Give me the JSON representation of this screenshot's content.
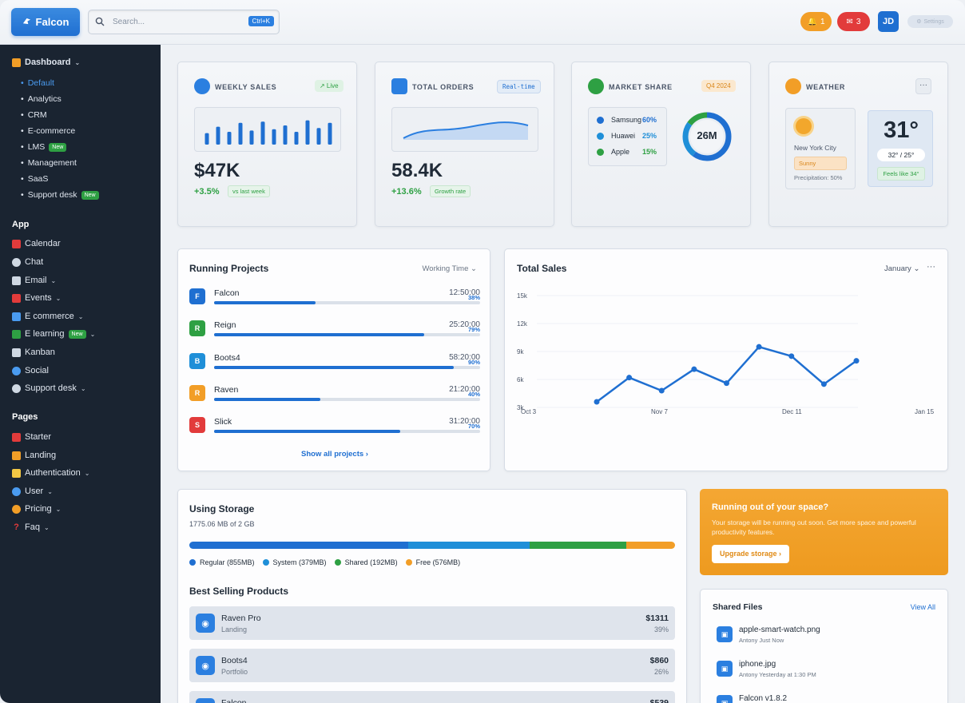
{
  "brand": {
    "name": "Falcon"
  },
  "search": {
    "placeholder": "Search...",
    "shortcut": "Ctrl+K"
  },
  "top_actions": {
    "alerts_count": "1",
    "messages_count": "3",
    "avatar_initials": "JD",
    "settings_label": "Settings"
  },
  "sidebar": {
    "dashboard_label": "Dashboard",
    "dashboard_items": [
      {
        "label": "Default",
        "badge": ""
      },
      {
        "label": "Analytics",
        "badge": ""
      },
      {
        "label": "CRM",
        "badge": ""
      },
      {
        "label": "E-commerce",
        "badge": ""
      },
      {
        "label": "LMS",
        "badge": "New"
      },
      {
        "label": "Management",
        "badge": ""
      },
      {
        "label": "SaaS",
        "badge": ""
      },
      {
        "label": "Support desk",
        "badge": "New"
      }
    ],
    "app_heading": "App",
    "app_items": [
      {
        "label": "Calendar",
        "badge": ""
      },
      {
        "label": "Chat",
        "badge": ""
      },
      {
        "label": "Email",
        "badge": ""
      },
      {
        "label": "Events",
        "badge": ""
      },
      {
        "label": "E commerce",
        "badge": ""
      },
      {
        "label": "E learning",
        "badge": "New"
      },
      {
        "label": "Kanban",
        "badge": ""
      },
      {
        "label": "Social",
        "badge": ""
      },
      {
        "label": "Support desk",
        "badge": ""
      }
    ],
    "pages_heading": "Pages",
    "pages_items": [
      {
        "label": "Starter"
      },
      {
        "label": "Landing"
      },
      {
        "label": "Authentication"
      },
      {
        "label": "User"
      },
      {
        "label": "Pricing"
      },
      {
        "label": "Faq"
      }
    ]
  },
  "weekly_sales": {
    "title": "WEEKLY SALES",
    "badge": "↗ Live",
    "value": "$47K",
    "change": "+3.5%",
    "sub": "vs last week",
    "bars": [
      0.45,
      0.7,
      0.5,
      0.85,
      0.55,
      0.9,
      0.6,
      0.75,
      0.5,
      0.95,
      0.65,
      0.85
    ]
  },
  "total_orders": {
    "title": "TOTAL ORDERS",
    "badge": "Real-time",
    "value": "58.4K",
    "change": "+13.6%",
    "sub": "Growth rate"
  },
  "market_share": {
    "title": "MARKET SHARE",
    "badge": "Q4 2024",
    "center": "26M",
    "rows": [
      {
        "name": "Samsung",
        "pct": "60%",
        "color": "#1f6fd1"
      },
      {
        "name": "Huawei",
        "pct": "25%",
        "color": "#1f8fd8"
      },
      {
        "name": "Apple",
        "pct": "15%",
        "color": "#2ea043"
      }
    ]
  },
  "weather": {
    "title": "WEATHER",
    "city": "New York City",
    "condition": "Sunny",
    "precip": "Precipitation: 50%",
    "temp": "31°",
    "range": "32° / 25°",
    "feels": "Feels like 34°"
  },
  "running_projects": {
    "title": "Running Projects",
    "filter": "Working Time",
    "show_all": "Show all projects ›",
    "items": [
      {
        "initial": "F",
        "name": "Falcon",
        "time": "12:50:00",
        "pct": "38%",
        "progress": 0.38,
        "color": "#1f6fd1"
      },
      {
        "initial": "R",
        "name": "Reign",
        "time": "25:20:00",
        "pct": "79%",
        "progress": 0.79,
        "color": "#2ea043"
      },
      {
        "initial": "B",
        "name": "Boots4",
        "time": "58:20:00",
        "pct": "90%",
        "progress": 0.9,
        "color": "#1f8fd8"
      },
      {
        "initial": "R",
        "name": "Raven",
        "time": "21:20:00",
        "pct": "40%",
        "progress": 0.4,
        "color": "#f29e27"
      },
      {
        "initial": "S",
        "name": "Slick",
        "time": "31:20:00",
        "pct": "70%",
        "progress": 0.7,
        "color": "#e23b3b"
      }
    ]
  },
  "total_sales": {
    "title": "Total Sales",
    "filter": "January"
  },
  "chart_data": {
    "type": "line",
    "title": "Total Sales",
    "y_ticks": [
      "15k",
      "12k",
      "9k",
      "6k",
      "3k"
    ],
    "ylim": [
      3000,
      15000
    ],
    "x_ticks": [
      "Oct 3",
      "Nov 7",
      "Dec 11",
      "Jan 15"
    ],
    "series": [
      {
        "values": [
          3600,
          6200,
          4800,
          7100,
          5600,
          9500,
          8500,
          5500,
          8000
        ]
      }
    ],
    "grid": true
  },
  "storage": {
    "title": "Using Storage",
    "sub": "1775.06 MB of 2 GB",
    "segments": [
      {
        "label": "Regular (855MB)",
        "fraction": 0.45,
        "color": "#1f6fd1"
      },
      {
        "label": "System (379MB)",
        "fraction": 0.25,
        "color": "#1f8fd8"
      },
      {
        "label": "Shared (192MB)",
        "fraction": 0.2,
        "color": "#2ea043"
      },
      {
        "label": "Free (576MB)",
        "fraction": 0.1,
        "color": "#f29e27"
      }
    ]
  },
  "best_selling": {
    "title": "Best Selling Products",
    "items": [
      {
        "name": "Raven Pro",
        "category": "Landing",
        "price": "$1311",
        "pct": "39%"
      },
      {
        "name": "Boots4",
        "category": "Portfolio",
        "price": "$860",
        "pct": "26%"
      },
      {
        "name": "Falcon",
        "category": "",
        "price": "$539",
        "pct": ""
      }
    ]
  },
  "space_promo": {
    "title": "Running out of your space?",
    "body": "Your storage will be running out soon. Get more space and powerful productivity features.",
    "button": "Upgrade storage ›"
  },
  "shared_files": {
    "title": "Shared Files",
    "view_all": "View All",
    "items": [
      {
        "name": "apple-smart-watch.png",
        "meta": "Antony Just Now"
      },
      {
        "name": "iphone.jpg",
        "meta": "Antony Yesterday at 1:30 PM"
      },
      {
        "name": "Falcon v1.8.2",
        "meta": ""
      }
    ]
  },
  "colors": {
    "accent": "#1f6fd1",
    "success": "#2ea043",
    "warning": "#f29e27",
    "danger": "#e23b3b",
    "sidebar_bg": "#1a2431"
  }
}
